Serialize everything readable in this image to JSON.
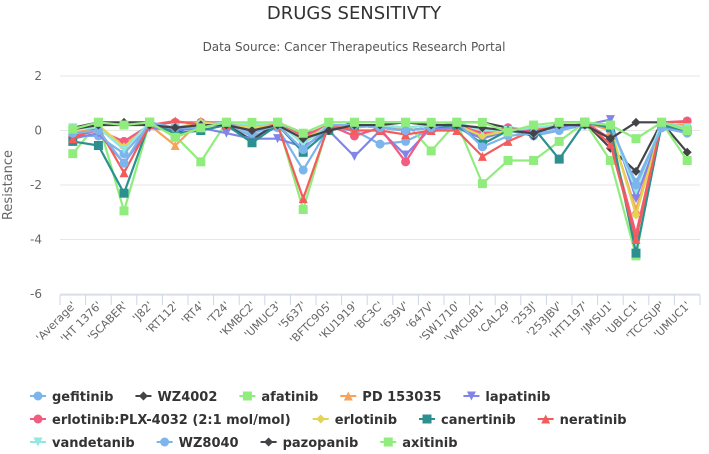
{
  "chart_data": {
    "type": "line",
    "title": "DRUGS SENSITIVTY",
    "subtitle": "Data Source: Cancer Therapeutics Research Portal",
    "xlabel": "",
    "ylabel": "Resistance",
    "ylim": [
      -6,
      2
    ],
    "yticks": [
      2,
      0,
      -2,
      -4,
      -6
    ],
    "grid": true,
    "legend_position": "bottom",
    "categories": [
      "'Average'",
      "'HT 1376'",
      "'SCABER'",
      "'J82'",
      "'RT112'",
      "'RT4'",
      "'T24'",
      "'KMBC2'",
      "'UMUC3'",
      "'5637'",
      "'BFTC905'",
      "'KU1919'",
      "'BC3C'",
      "'639V'",
      "'647V'",
      "'SW1710'",
      "'VMCUB1'",
      "'CAL29'",
      "'253J'",
      "'253JBV'",
      "'HT1197'",
      "'JMSU1'",
      "'UBLC1'",
      "'TCCSUP'",
      "'UMUC1'"
    ],
    "series": [
      {
        "name": "gefitinib",
        "color": "#7cb5ec",
        "marker": "circle",
        "values": [
          -0.2,
          -0.2,
          -0.85,
          0.2,
          0.05,
          0.2,
          0.2,
          -0.2,
          0.1,
          -1.45,
          0.1,
          0.0,
          -0.5,
          -0.4,
          0.05,
          0.1,
          -0.2,
          0.0,
          -0.2,
          0.0,
          0.2,
          0.1,
          -1.9,
          0.1,
          0.0
        ]
      },
      {
        "name": "WZ4002",
        "color": "#434348",
        "marker": "diamond",
        "values": [
          0.1,
          0.3,
          0.3,
          0.3,
          -0.1,
          0.3,
          0.2,
          -0.35,
          0.3,
          -0.1,
          0.0,
          0.3,
          0.3,
          0.3,
          0.2,
          0.3,
          0.3,
          0.1,
          -0.2,
          0.3,
          0.3,
          -0.65,
          -1.5,
          0.3,
          -0.8
        ]
      },
      {
        "name": "afatinib",
        "color": "#90ed7d",
        "marker": "square",
        "values": [
          -0.85,
          0.3,
          -2.95,
          0.3,
          -0.2,
          -1.15,
          0.3,
          0.25,
          0.3,
          -2.9,
          0.3,
          0.3,
          0.3,
          0.3,
          -0.75,
          0.3,
          -1.95,
          -1.1,
          -1.1,
          -0.4,
          0.3,
          -1.1,
          -4.6,
          0.3,
          -1.1
        ]
      },
      {
        "name": "PD 153035",
        "color": "#f7a35c",
        "marker": "triangle",
        "values": [
          -0.1,
          0.1,
          -0.5,
          0.2,
          -0.55,
          0.35,
          0.2,
          0.2,
          0.2,
          -0.3,
          0.2,
          0.1,
          0.2,
          0.0,
          0.1,
          0.2,
          -0.1,
          0.0,
          0.1,
          0.2,
          0.3,
          0.0,
          -2.9,
          0.2,
          0.2
        ]
      },
      {
        "name": "lapatinib",
        "color": "#8085e9",
        "marker": "triangle-down",
        "values": [
          -0.3,
          -0.1,
          -1.2,
          0.1,
          0.0,
          0.1,
          -0.1,
          -0.3,
          -0.3,
          -0.6,
          0.0,
          -0.95,
          0.0,
          -0.9,
          0.1,
          0.1,
          -0.3,
          0.0,
          0.0,
          0.1,
          0.2,
          0.4,
          -2.5,
          0.1,
          0.0
        ]
      },
      {
        "name": "erlotinib:PLX-4032 (2:1 mol/mol)",
        "color": "#f15c80",
        "marker": "circle",
        "values": [
          -0.2,
          0.0,
          -0.4,
          0.2,
          0.3,
          0.3,
          0.3,
          -0.1,
          0.3,
          -0.2,
          0.2,
          -0.2,
          0.1,
          -1.15,
          0.3,
          0.2,
          -0.1,
          0.1,
          0.0,
          0.2,
          0.3,
          -0.3,
          -3.8,
          0.3,
          0.35
        ]
      },
      {
        "name": "erlotinib",
        "color": "#e4d354",
        "marker": "diamond",
        "values": [
          0.0,
          0.2,
          -0.6,
          0.2,
          0.1,
          0.3,
          0.2,
          0.1,
          0.2,
          -0.4,
          0.2,
          0.2,
          0.2,
          0.1,
          0.2,
          0.2,
          -0.2,
          0.0,
          0.1,
          0.2,
          0.3,
          0.1,
          -3.1,
          0.2,
          0.1
        ]
      },
      {
        "name": "canertinib",
        "color": "#2b908f",
        "marker": "square",
        "values": [
          -0.4,
          -0.55,
          -2.3,
          0.3,
          -0.1,
          0.0,
          0.2,
          -0.45,
          0.2,
          -0.8,
          0.0,
          0.2,
          0.1,
          0.0,
          0.1,
          0.2,
          -0.5,
          0.0,
          0.1,
          -1.05,
          0.3,
          0.1,
          -4.5,
          0.2,
          0.0
        ]
      },
      {
        "name": "neratinib",
        "color": "#f45b5b",
        "marker": "triangle",
        "values": [
          -0.3,
          0.1,
          -1.55,
          0.2,
          0.35,
          0.2,
          0.2,
          0.0,
          0.2,
          -2.5,
          0.2,
          0.0,
          0.0,
          -0.15,
          0.0,
          0.0,
          -0.95,
          -0.4,
          0.0,
          0.2,
          0.3,
          -0.5,
          -4.0,
          0.3,
          0.3
        ]
      },
      {
        "name": "vandetanib",
        "color": "#91e8e1",
        "marker": "triangle-down",
        "values": [
          0.1,
          0.1,
          -0.7,
          0.3,
          0.1,
          0.2,
          0.3,
          0.2,
          0.3,
          -0.5,
          0.2,
          0.2,
          0.2,
          0.1,
          0.2,
          0.3,
          0.0,
          0.0,
          0.1,
          0.2,
          0.3,
          0.2,
          -2.2,
          0.3,
          0.1
        ]
      },
      {
        "name": "WZ8040",
        "color": "#7cb5ec",
        "marker": "circle",
        "values": [
          -0.1,
          0.0,
          -1.2,
          0.3,
          0.1,
          0.1,
          0.3,
          -0.1,
          0.2,
          -0.7,
          0.2,
          0.2,
          0.1,
          0.0,
          0.1,
          0.3,
          -0.6,
          -0.2,
          -0.1,
          0.0,
          0.3,
          0.2,
          -2.0,
          0.1,
          -0.1
        ]
      },
      {
        "name": "pazopanib",
        "color": "#434348",
        "marker": "diamond",
        "values": [
          0.05,
          0.2,
          0.2,
          0.2,
          0.1,
          0.2,
          0.2,
          0.0,
          0.2,
          -0.3,
          0.0,
          0.2,
          0.2,
          0.3,
          0.2,
          0.2,
          0.1,
          0.0,
          -0.1,
          0.2,
          0.2,
          -0.3,
          0.3,
          0.3,
          0.0
        ]
      },
      {
        "name": "axitinib",
        "color": "#90ed7d",
        "marker": "square",
        "values": [
          0.05,
          0.3,
          0.2,
          0.3,
          -0.25,
          0.1,
          0.3,
          0.3,
          0.3,
          -0.1,
          0.3,
          0.3,
          0.3,
          0.3,
          0.3,
          0.3,
          0.3,
          -0.05,
          0.2,
          0.3,
          0.3,
          0.2,
          -0.3,
          0.3,
          0.0
        ]
      }
    ]
  }
}
